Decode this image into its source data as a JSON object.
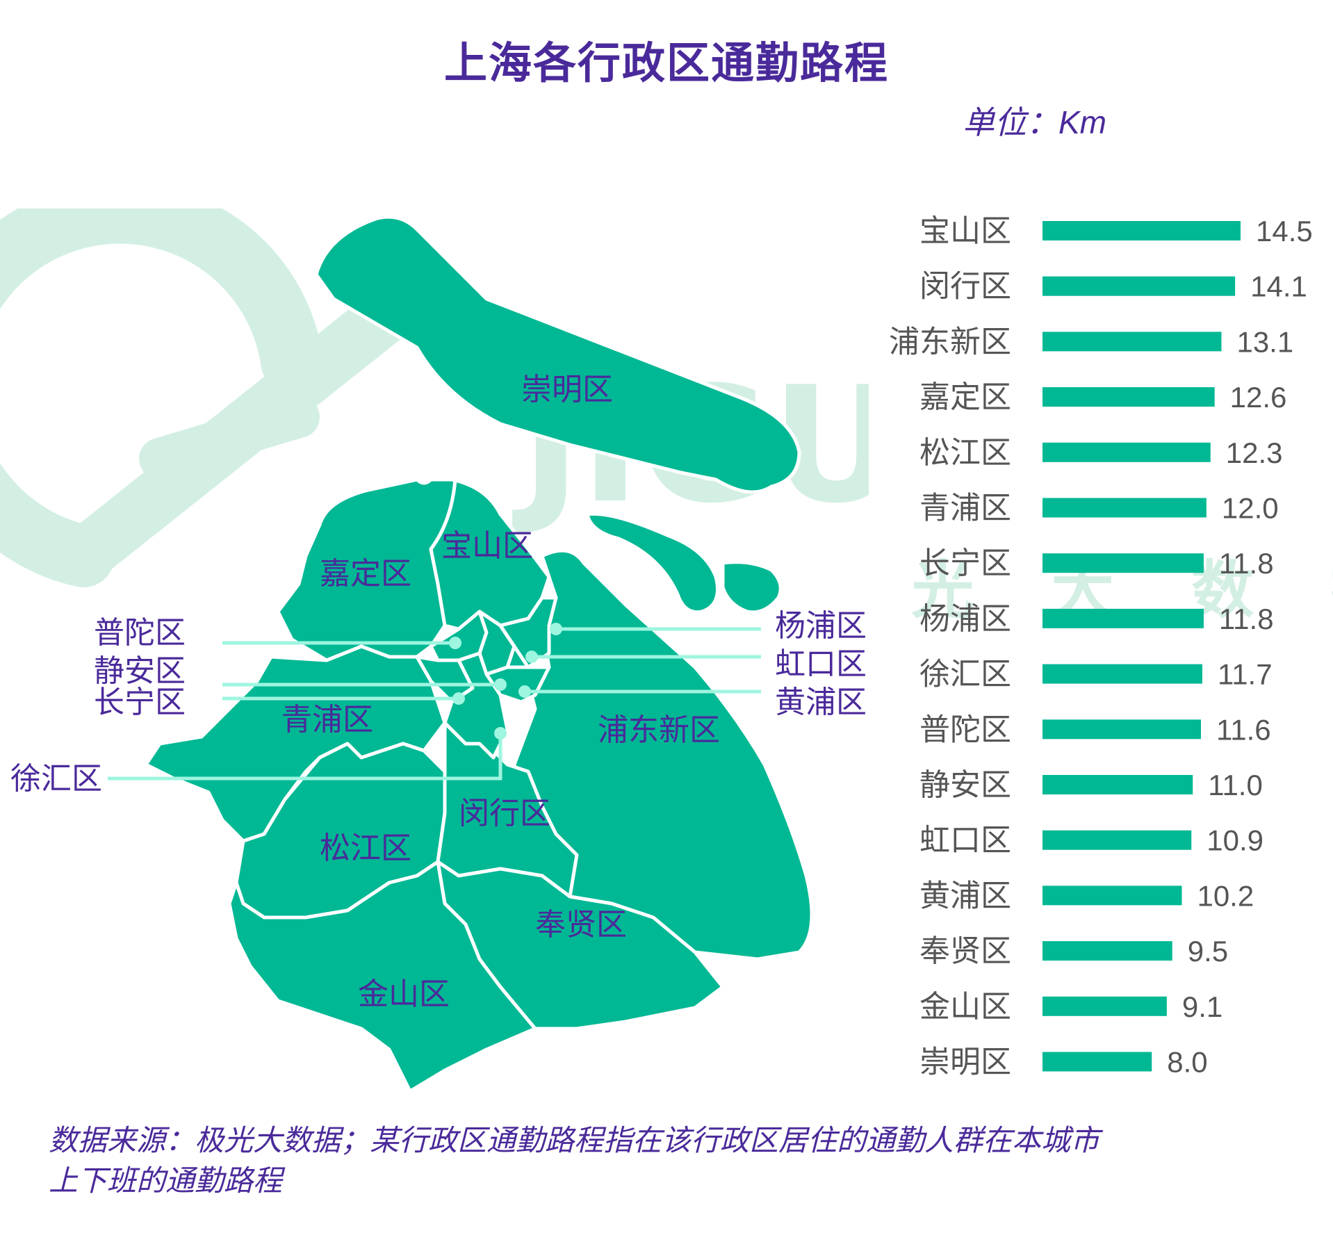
{
  "title": "上海各行政区通勤路程",
  "unit_label": "单位：Km",
  "footnote_line1": "数据来源：极光大数据；某行政区通勤路程指在该行政区居住的通勤人群在本城市",
  "footnote_line2": "上下班的通勤路程",
  "watermark": {
    "brand": "JIGUANG",
    "cn": "极 光 大 数 据"
  },
  "colors": {
    "accent": "#00b894",
    "title": "#4a2a9a",
    "bar_label": "#555555",
    "leader_line": "#9ef5e0",
    "watermark": "#d3efe3"
  },
  "map_labels": {
    "chongming": "崇明区",
    "baoshan": "宝山区",
    "jiading": "嘉定区",
    "qingpu": "青浦区",
    "pudong": "浦东新区",
    "songjiang": "松江区",
    "minhang": "闵行区",
    "fengxian": "奉贤区",
    "jinshan": "金山区",
    "putuo": "普陀区",
    "jingan": "静安区",
    "changning": "长宁区",
    "xuhui": "徐汇区",
    "yangpu": "杨浦区",
    "hongkou": "虹口区",
    "huangpu": "黄浦区"
  },
  "chart_data": {
    "type": "bar",
    "orientation": "horizontal",
    "title": "上海各行政区通勤路程",
    "unit": "Km",
    "categories": [
      "宝山区",
      "闵行区",
      "浦东新区",
      "嘉定区",
      "松江区",
      "青浦区",
      "长宁区",
      "杨浦区",
      "徐汇区",
      "普陀区",
      "静安区",
      "虹口区",
      "黄浦区",
      "奉贤区",
      "金山区",
      "崇明区"
    ],
    "values": [
      14.5,
      14.1,
      13.1,
      12.6,
      12.3,
      12.0,
      11.8,
      11.8,
      11.7,
      11.6,
      11.0,
      10.9,
      10.2,
      9.5,
      9.1,
      8.0
    ],
    "value_labels": [
      "14.5",
      "14.1",
      "13.1",
      "12.6",
      "12.3",
      "12.0",
      "11.8",
      "11.8",
      "11.7",
      "11.6",
      "11.0",
      "10.9",
      "10.2",
      "9.5",
      "9.1",
      "8.0"
    ],
    "xlim": [
      0,
      14.5
    ],
    "grid": false,
    "legend": "none",
    "bar_color": "#00b894"
  }
}
